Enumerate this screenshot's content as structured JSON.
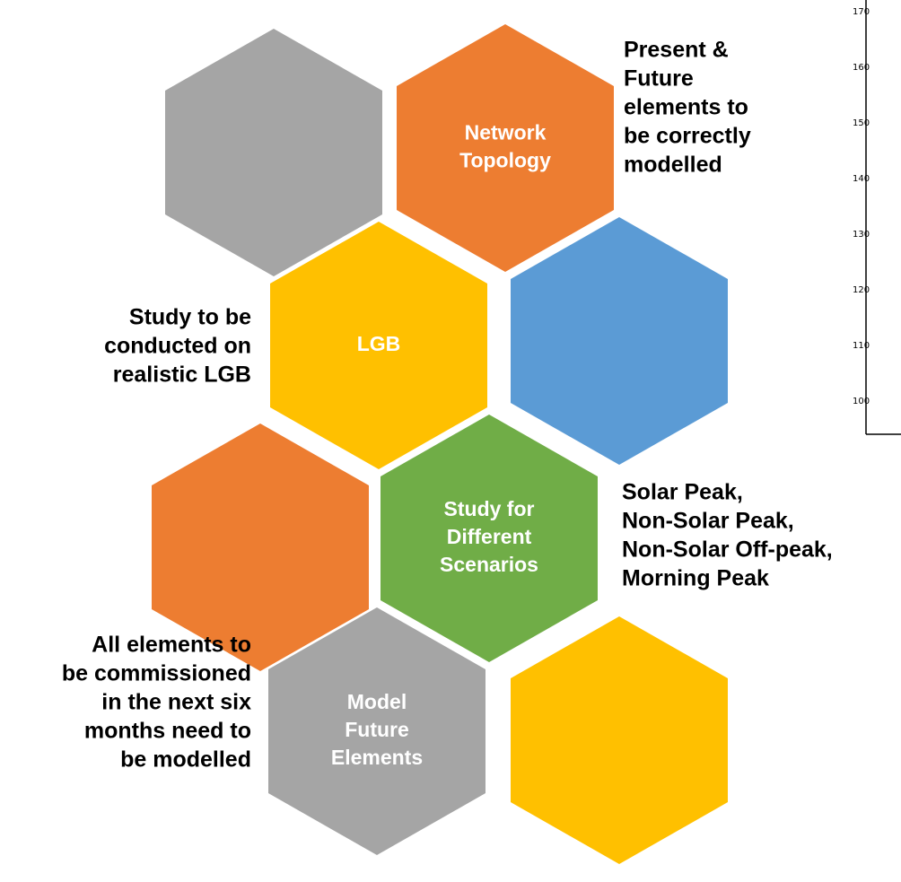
{
  "hexagons": [
    {
      "color": "#a5a5a5"
    },
    {
      "color": "#ed7d31",
      "lines": [
        "Network",
        "Topology"
      ]
    },
    {
      "color": "#ffc000",
      "lines": [
        "LGB"
      ]
    },
    {
      "color": "#5b9bd5"
    },
    {
      "color": "#ed7d31"
    },
    {
      "color": "#70ad47",
      "lines": [
        "Study for",
        "Different",
        "Scenarios"
      ]
    },
    {
      "color": "#a5a5a5",
      "lines": [
        "Model",
        "Future",
        "Elements"
      ]
    },
    {
      "color": "#ffc000"
    }
  ],
  "notes": [
    {
      "lines": [
        "Present &",
        "Future",
        "elements to",
        "be correctly",
        "modelled"
      ]
    },
    {
      "lines": [
        "Study to be",
        "conducted on",
        "realistic LGB"
      ]
    },
    {
      "lines": [
        "Solar Peak,",
        "Non-Solar Peak,",
        "Non-Solar Off-peak,",
        "Morning Peak"
      ]
    },
    {
      "lines": [
        "All elements to",
        "be commissioned",
        "in the next six",
        "months need to",
        "be modelled"
      ]
    }
  ],
  "axis_fragment": {
    "labels": [
      "170",
      "160",
      "150",
      "140",
      "130",
      "120",
      "110",
      "100"
    ]
  }
}
